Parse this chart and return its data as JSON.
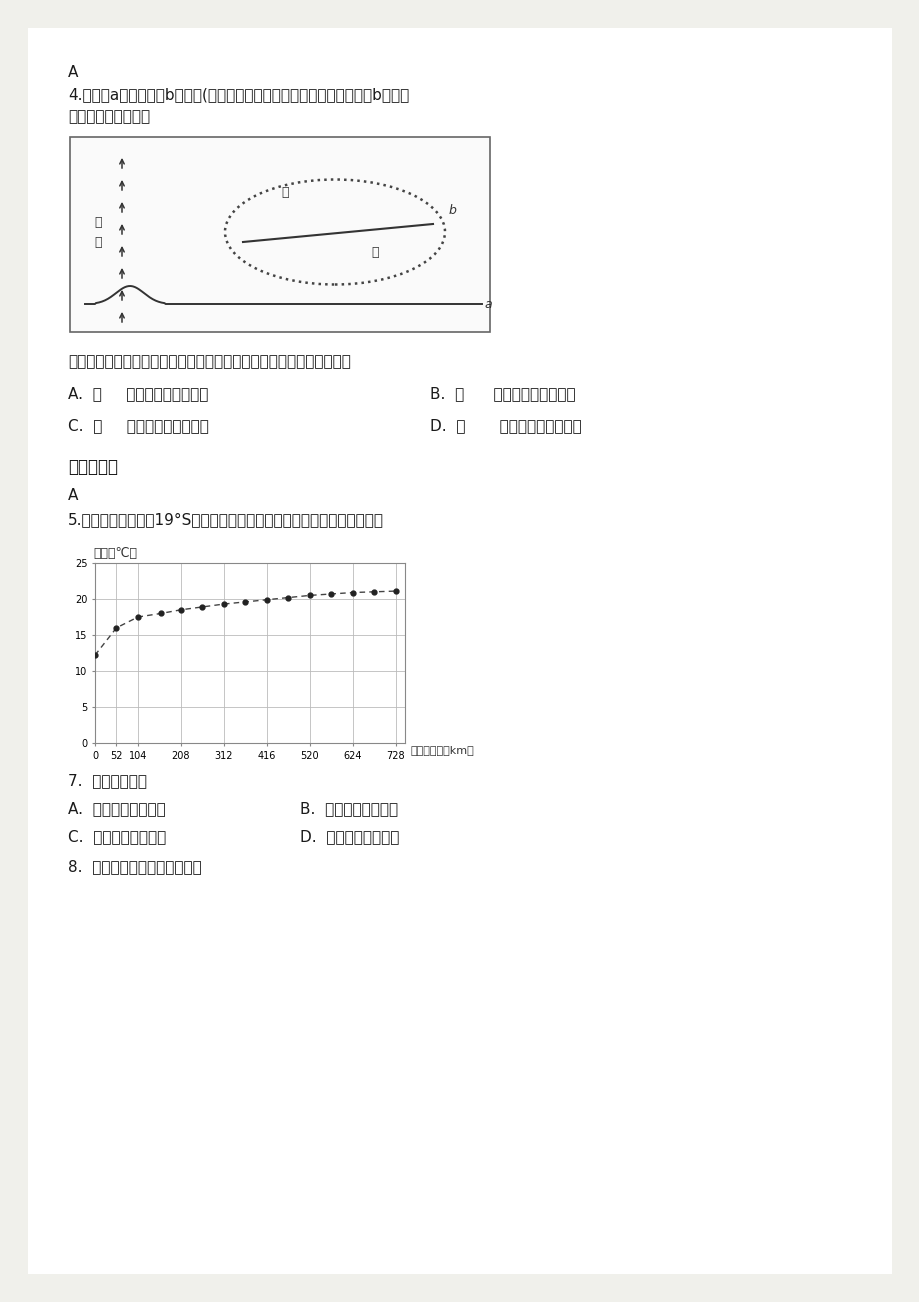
{
  "page_bg": "#f0f0eb",
  "content_bg": "#ffffff",
  "text_color": "#222222",
  "line1": "A",
  "line2": "4.下图中a为等温线，b为锋线(锋面与地面交线），虚线范围内为雨区且b向偏北",
  "line3": "方向移动，读图回答",
  "question_text": "当前，有关甲、乙两处气温日较差较大的地点及其原因的叙述正确的是",
  "opt_A": "A.  甲     受单一的暖气团控制",
  "opt_B": "B.  乙      受单一的冷气团控制",
  "opt_C": "C.  甲     受单一的冷气团控制",
  "opt_D": "D.  乙       受单一的暖气团控制",
  "ref_title": "参考答案：",
  "ans_A": "A",
  "line_q5": "5.下图示意某海域沿19°S的表层海水温度变化曲线。读图完成下面小题。",
  "ylabel": "水温（℃）",
  "xlabel": "距海岸距离（km）",
  "xticks": [
    0,
    52,
    104,
    208,
    312,
    416,
    520,
    624,
    728
  ],
  "yticks": [
    0,
    5,
    10,
    15,
    20,
    25
  ],
  "xlim": [
    0,
    750
  ],
  "ylim": [
    0,
    25
  ],
  "x_data": [
    0,
    52,
    104,
    160,
    208,
    260,
    312,
    364,
    416,
    468,
    520,
    572,
    624,
    676,
    728
  ],
  "y_data": [
    12.2,
    16.0,
    17.5,
    18.0,
    18.5,
    18.9,
    19.3,
    19.6,
    19.9,
    20.2,
    20.5,
    20.7,
    20.9,
    21.0,
    21.1
  ],
  "q7": "7.  该海域可能是",
  "q7_A": "A.  非洲大陆东岸海域",
  "q7_B": "B.  南大西洋西部海域",
  "q7_C": "C.  南太平洋西部海域",
  "q7_D": "D.  南美大陆西岸海域",
  "q8": "8.  该海域洋流对环境的影响是"
}
